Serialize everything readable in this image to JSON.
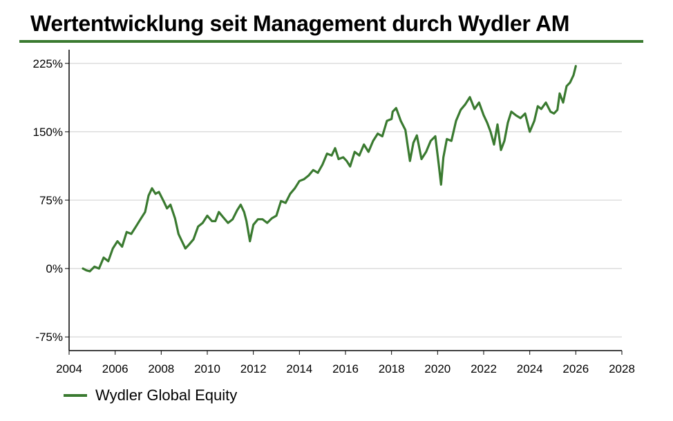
{
  "colors": {
    "accent": "#3a7a30",
    "grid": "#cccccc",
    "axis": "#000000"
  },
  "chart_data": {
    "type": "line",
    "title": "Wertentwicklung seit Management durch Wydler AM",
    "xlabel": "",
    "ylabel": "",
    "xlim": [
      2004,
      2028
    ],
    "ylim": [
      -90,
      240
    ],
    "x_ticks": [
      2004,
      2006,
      2008,
      2010,
      2012,
      2014,
      2016,
      2018,
      2020,
      2022,
      2024,
      2026,
      2028
    ],
    "x_tick_labels": [
      "2004",
      "2006",
      "2008",
      "2010",
      "2012",
      "2014",
      "2016",
      "2018",
      "2020",
      "2022",
      "2024",
      "2026",
      "2028"
    ],
    "y_ticks": [
      -75,
      0,
      75,
      150,
      225
    ],
    "y_tick_labels": [
      "-75%",
      "0%",
      "75%",
      "150%",
      "225%"
    ],
    "grid": "horizontal",
    "legend": "bottom-left",
    "series": [
      {
        "name": "Wydler Global Equity",
        "color": "#3a7a30",
        "x": [
          2004.6,
          2004.75,
          2004.9,
          2005.1,
          2005.3,
          2005.5,
          2005.7,
          2005.9,
          2006.1,
          2006.3,
          2006.5,
          2006.7,
          2006.9,
          2007.1,
          2007.3,
          2007.45,
          2007.6,
          2007.75,
          2007.9,
          2008.1,
          2008.25,
          2008.4,
          2008.6,
          2008.75,
          2008.9,
          2009.05,
          2009.2,
          2009.4,
          2009.6,
          2009.8,
          2010.0,
          2010.2,
          2010.35,
          2010.5,
          2010.7,
          2010.9,
          2011.1,
          2011.3,
          2011.45,
          2011.6,
          2011.7,
          2011.85,
          2012.0,
          2012.2,
          2012.4,
          2012.6,
          2012.8,
          2013.0,
          2013.2,
          2013.4,
          2013.6,
          2013.8,
          2014.0,
          2014.2,
          2014.4,
          2014.6,
          2014.8,
          2015.0,
          2015.2,
          2015.4,
          2015.55,
          2015.7,
          2015.9,
          2016.05,
          2016.2,
          2016.4,
          2016.6,
          2016.8,
          2017.0,
          2017.2,
          2017.4,
          2017.6,
          2017.8,
          2018.0,
          2018.05,
          2018.2,
          2018.4,
          2018.6,
          2018.8,
          2018.95,
          2019.1,
          2019.3,
          2019.5,
          2019.7,
          2019.9,
          2020.05,
          2020.15,
          2020.25,
          2020.4,
          2020.6,
          2020.8,
          2021.0,
          2021.2,
          2021.4,
          2021.6,
          2021.8,
          2022.0,
          2022.15,
          2022.3,
          2022.45,
          2022.6,
          2022.75,
          2022.9,
          2023.05,
          2023.2,
          2023.4,
          2023.6,
          2023.8,
          2024.0,
          2024.2,
          2024.35,
          2024.5,
          2024.7,
          2024.9,
          2025.05,
          2025.2,
          2025.3,
          2025.45,
          2025.6,
          2025.75,
          2025.9,
          2026.0
        ],
        "values": [
          0,
          -2,
          -3,
          2,
          0,
          12,
          8,
          22,
          30,
          24,
          40,
          38,
          46,
          54,
          62,
          80,
          88,
          82,
          84,
          74,
          66,
          70,
          55,
          38,
          30,
          22,
          26,
          32,
          46,
          50,
          58,
          52,
          52,
          62,
          56,
          50,
          54,
          64,
          70,
          62,
          52,
          30,
          48,
          54,
          54,
          50,
          55,
          58,
          74,
          72,
          82,
          88,
          96,
          98,
          102,
          108,
          105,
          114,
          126,
          124,
          132,
          120,
          122,
          118,
          112,
          128,
          124,
          136,
          128,
          140,
          148,
          145,
          162,
          164,
          172,
          176,
          162,
          152,
          118,
          138,
          146,
          120,
          128,
          140,
          145,
          114,
          92,
          122,
          142,
          140,
          162,
          174,
          180,
          188,
          175,
          182,
          168,
          160,
          150,
          136,
          158,
          130,
          140,
          160,
          172,
          168,
          165,
          170,
          150,
          162,
          178,
          175,
          182,
          172,
          170,
          174,
          192,
          182,
          200,
          204,
          212,
          222
        ]
      }
    ]
  }
}
